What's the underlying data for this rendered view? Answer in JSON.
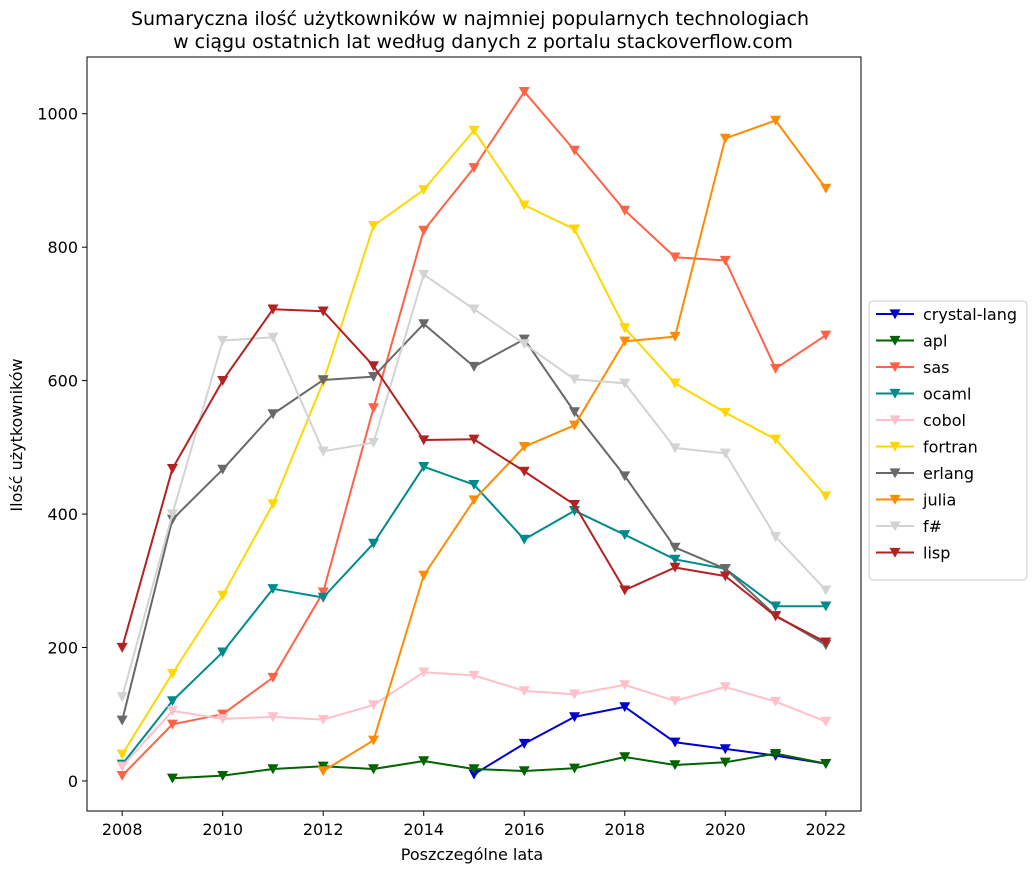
{
  "chart_data": {
    "type": "line",
    "title_line1": "Sumaryczna ilość użytkowników w najmniej popularnych technologiach",
    "title_line2": "w ciągu ostatnich lat według danych z portalu stackoverflow.com",
    "xlabel": "Poszczególne lata",
    "ylabel": "Ilość użytkowników",
    "xlim": [
      2007.3,
      2022.7
    ],
    "ylim": [
      -45,
      1085
    ],
    "xticks": [
      2008,
      2010,
      2012,
      2014,
      2016,
      2018,
      2020,
      2022
    ],
    "yticks": [
      0,
      200,
      400,
      600,
      800,
      1000
    ],
    "grid": false,
    "legend_position": "right-center",
    "marker": "triangle-down",
    "series": [
      {
        "name": "crystal-lang",
        "color": "#0000cd",
        "x": [
          2015,
          2016,
          2017,
          2018,
          2019,
          2020,
          2021,
          2022
        ],
        "y": [
          10,
          56,
          96,
          111,
          58,
          48,
          38,
          26
        ]
      },
      {
        "name": "apl",
        "color": "#006400",
        "x": [
          2009,
          2010,
          2011,
          2012,
          2013,
          2014,
          2015,
          2016,
          2017,
          2018,
          2019,
          2020,
          2021,
          2022
        ],
        "y": [
          4,
          8,
          18,
          22,
          18,
          30,
          18,
          15,
          19,
          36,
          24,
          28,
          41,
          26
        ]
      },
      {
        "name": "sas",
        "color": "#ff6347",
        "x": [
          2008,
          2009,
          2010,
          2011,
          2012,
          2013,
          2014,
          2015,
          2016,
          2017,
          2018,
          2019,
          2020,
          2021,
          2022
        ],
        "y": [
          8,
          85,
          100,
          155,
          283,
          559,
          825,
          919,
          1033,
          945,
          855,
          785,
          780,
          618,
          668
        ]
      },
      {
        "name": "ocaml",
        "color": "#008b8b",
        "x": [
          2008,
          2009,
          2010,
          2011,
          2012,
          2013,
          2014,
          2015,
          2016,
          2017,
          2018,
          2019,
          2020,
          2021,
          2022
        ],
        "y": [
          25,
          120,
          193,
          288,
          275,
          356,
          471,
          444,
          362,
          405,
          369,
          332,
          318,
          262,
          262
        ]
      },
      {
        "name": "cobol",
        "color": "#ffc0cb",
        "x": [
          2008,
          2009,
          2010,
          2011,
          2012,
          2013,
          2014,
          2015,
          2016,
          2017,
          2018,
          2019,
          2020,
          2021,
          2022
        ],
        "y": [
          22,
          105,
          93,
          96,
          92,
          114,
          163,
          158,
          135,
          130,
          144,
          120,
          141,
          119,
          89
        ]
      },
      {
        "name": "fortran",
        "color": "#ffd700",
        "x": [
          2008,
          2009,
          2010,
          2011,
          2012,
          2013,
          2014,
          2015,
          2016,
          2017,
          2018,
          2019,
          2020,
          2021,
          2022
        ],
        "y": [
          40,
          161,
          278,
          415,
          598,
          832,
          886,
          975,
          863,
          827,
          679,
          596,
          552,
          512,
          427
        ]
      },
      {
        "name": "erlang",
        "color": "#696969",
        "x": [
          2008,
          2009,
          2010,
          2011,
          2012,
          2013,
          2014,
          2015,
          2016,
          2017,
          2018,
          2019,
          2020,
          2021,
          2022
        ],
        "y": [
          91,
          392,
          467,
          550,
          601,
          606,
          685,
          621,
          662,
          553,
          457,
          350,
          318,
          248,
          204
        ]
      },
      {
        "name": "julia",
        "color": "#ff8c00",
        "x": [
          2012,
          2013,
          2014,
          2015,
          2016,
          2017,
          2018,
          2019,
          2020,
          2021,
          2022
        ],
        "y": [
          15,
          61,
          308,
          421,
          501,
          533,
          659,
          666,
          963,
          990,
          888
        ]
      },
      {
        "name": "f#",
        "color": "#d3d3d3",
        "x": [
          2008,
          2009,
          2010,
          2011,
          2012,
          2013,
          2014,
          2015,
          2016,
          2017,
          2018,
          2019,
          2020,
          2021,
          2022
        ],
        "y": [
          126,
          400,
          660,
          665,
          494,
          507,
          759,
          707,
          655,
          602,
          596,
          499,
          491,
          366,
          286
        ]
      },
      {
        "name": "lisp",
        "color": "#b22222",
        "x": [
          2008,
          2009,
          2010,
          2011,
          2012,
          2013,
          2014,
          2015,
          2016,
          2017,
          2018,
          2019,
          2020,
          2021,
          2022
        ],
        "y": [
          200,
          468,
          600,
          707,
          704,
          622,
          511,
          512,
          464,
          414,
          286,
          320,
          307,
          247,
          208
        ]
      }
    ]
  }
}
